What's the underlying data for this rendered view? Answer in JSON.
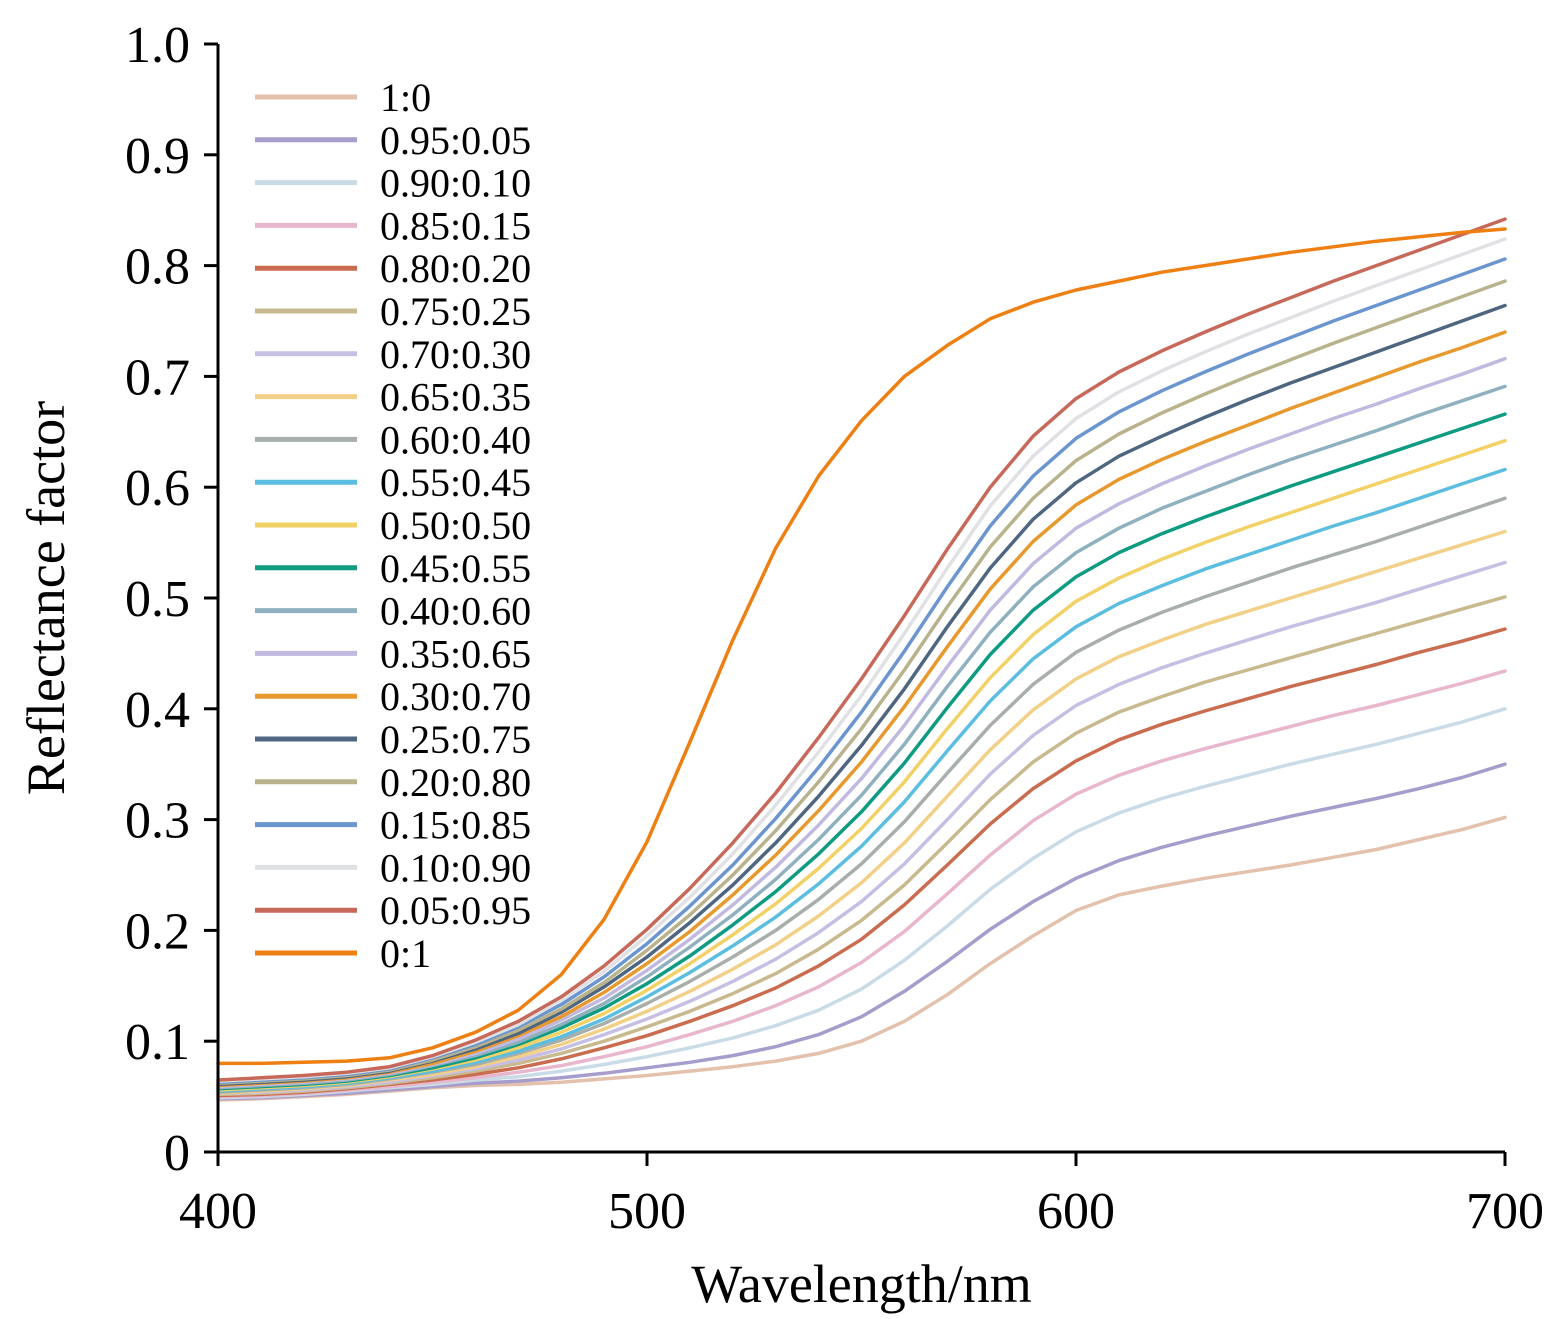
{
  "chart_data": {
    "type": "line",
    "title": "",
    "xlabel": "Wavelength/nm",
    "ylabel": "Reflectance factor",
    "xlim": [
      400,
      700
    ],
    "ylim": [
      0,
      1.0
    ],
    "x_ticks": [
      400,
      500,
      600,
      700
    ],
    "x_tick_labels": [
      "400",
      "500",
      "600",
      "700"
    ],
    "y_ticks": [
      0,
      0.1,
      0.2,
      0.3,
      0.4,
      0.5,
      0.6,
      0.7,
      0.8,
      0.9,
      1.0
    ],
    "y_tick_labels": [
      "0",
      "0.1",
      "0.2",
      "0.3",
      "0.4",
      "0.5",
      "0.6",
      "0.7",
      "0.8",
      "0.9",
      "1.0"
    ],
    "grid": false,
    "legend_position": "top-left",
    "x": [
      400,
      410,
      420,
      430,
      440,
      450,
      460,
      470,
      480,
      490,
      500,
      510,
      520,
      530,
      540,
      550,
      560,
      570,
      580,
      590,
      600,
      610,
      620,
      630,
      640,
      650,
      660,
      670,
      680,
      690,
      700
    ],
    "series": [
      {
        "name": "1:0",
        "color": "#e3c1ad",
        "values": [
          0.047,
          0.048,
          0.05,
          0.052,
          0.055,
          0.058,
          0.06,
          0.061,
          0.063,
          0.066,
          0.069,
          0.073,
          0.077,
          0.082,
          0.089,
          0.1,
          0.118,
          0.142,
          0.17,
          0.195,
          0.218,
          0.232,
          0.24,
          0.247,
          0.253,
          0.259,
          0.266,
          0.273,
          0.282,
          0.291,
          0.302
        ]
      },
      {
        "name": "0.95:0.05",
        "color": "#a79dcc",
        "values": [
          0.048,
          0.049,
          0.051,
          0.053,
          0.056,
          0.059,
          0.062,
          0.064,
          0.067,
          0.071,
          0.076,
          0.081,
          0.087,
          0.095,
          0.106,
          0.122,
          0.145,
          0.172,
          0.201,
          0.226,
          0.247,
          0.263,
          0.275,
          0.285,
          0.294,
          0.303,
          0.311,
          0.319,
          0.328,
          0.338,
          0.35
        ]
      },
      {
        "name": "0.90:0.10",
        "color": "#c9dbe7",
        "values": [
          0.049,
          0.05,
          0.052,
          0.055,
          0.058,
          0.061,
          0.065,
          0.068,
          0.073,
          0.079,
          0.086,
          0.094,
          0.103,
          0.114,
          0.128,
          0.147,
          0.173,
          0.204,
          0.237,
          0.265,
          0.289,
          0.306,
          0.319,
          0.33,
          0.34,
          0.35,
          0.359,
          0.368,
          0.378,
          0.388,
          0.4
        ]
      },
      {
        "name": "0.85:0.15",
        "color": "#e8b6cd",
        "values": [
          0.05,
          0.051,
          0.053,
          0.056,
          0.059,
          0.063,
          0.067,
          0.072,
          0.078,
          0.086,
          0.095,
          0.106,
          0.118,
          0.132,
          0.149,
          0.171,
          0.199,
          0.233,
          0.268,
          0.299,
          0.323,
          0.34,
          0.353,
          0.364,
          0.374,
          0.384,
          0.394,
          0.403,
          0.413,
          0.423,
          0.434
        ]
      },
      {
        "name": "0.80:0.20",
        "color": "#c96c4f",
        "values": [
          0.051,
          0.052,
          0.054,
          0.057,
          0.061,
          0.065,
          0.07,
          0.076,
          0.084,
          0.094,
          0.105,
          0.118,
          0.132,
          0.148,
          0.168,
          0.192,
          0.223,
          0.259,
          0.296,
          0.328,
          0.353,
          0.372,
          0.386,
          0.398,
          0.409,
          0.42,
          0.43,
          0.44,
          0.451,
          0.461,
          0.472
        ]
      },
      {
        "name": "0.75:0.25",
        "color": "#c9b98f",
        "values": [
          0.052,
          0.053,
          0.055,
          0.058,
          0.062,
          0.067,
          0.073,
          0.08,
          0.089,
          0.1,
          0.113,
          0.127,
          0.143,
          0.161,
          0.183,
          0.209,
          0.241,
          0.279,
          0.318,
          0.352,
          0.378,
          0.397,
          0.411,
          0.424,
          0.435,
          0.446,
          0.457,
          0.468,
          0.479,
          0.49,
          0.501
        ]
      },
      {
        "name": "0.70:0.30",
        "color": "#c7bfe3",
        "values": [
          0.053,
          0.054,
          0.056,
          0.059,
          0.063,
          0.069,
          0.075,
          0.083,
          0.093,
          0.106,
          0.12,
          0.136,
          0.154,
          0.174,
          0.198,
          0.226,
          0.26,
          0.3,
          0.341,
          0.376,
          0.403,
          0.422,
          0.437,
          0.45,
          0.462,
          0.474,
          0.485,
          0.496,
          0.508,
          0.52,
          0.532
        ]
      },
      {
        "name": "0.65:0.35",
        "color": "#f2d087",
        "values": [
          0.053,
          0.055,
          0.057,
          0.06,
          0.065,
          0.07,
          0.077,
          0.086,
          0.097,
          0.111,
          0.127,
          0.145,
          0.165,
          0.187,
          0.213,
          0.243,
          0.279,
          0.321,
          0.363,
          0.399,
          0.427,
          0.447,
          0.462,
          0.476,
          0.488,
          0.5,
          0.512,
          0.524,
          0.536,
          0.548,
          0.56
        ]
      },
      {
        "name": "0.60:0.40",
        "color": "#a8aeaa",
        "values": [
          0.054,
          0.056,
          0.058,
          0.061,
          0.066,
          0.072,
          0.079,
          0.089,
          0.101,
          0.116,
          0.134,
          0.154,
          0.176,
          0.2,
          0.228,
          0.26,
          0.298,
          0.342,
          0.385,
          0.422,
          0.451,
          0.471,
          0.487,
          0.501,
          0.514,
          0.527,
          0.539,
          0.551,
          0.564,
          0.577,
          0.59
        ]
      },
      {
        "name": "0.55:0.45",
        "color": "#5bbde0",
        "values": [
          0.055,
          0.057,
          0.059,
          0.062,
          0.067,
          0.073,
          0.081,
          0.091,
          0.104,
          0.12,
          0.14,
          0.162,
          0.186,
          0.212,
          0.242,
          0.276,
          0.316,
          0.362,
          0.407,
          0.445,
          0.474,
          0.495,
          0.511,
          0.526,
          0.539,
          0.552,
          0.565,
          0.577,
          0.59,
          0.603,
          0.616
        ]
      },
      {
        "name": "0.50:0.50",
        "color": "#f2d166",
        "values": [
          0.056,
          0.058,
          0.06,
          0.063,
          0.068,
          0.075,
          0.083,
          0.094,
          0.108,
          0.125,
          0.146,
          0.17,
          0.196,
          0.224,
          0.256,
          0.292,
          0.334,
          0.382,
          0.428,
          0.467,
          0.497,
          0.518,
          0.535,
          0.55,
          0.564,
          0.577,
          0.59,
          0.603,
          0.616,
          0.629,
          0.642
        ]
      },
      {
        "name": "0.45:0.55",
        "color": "#0e9b82",
        "values": [
          0.057,
          0.059,
          0.061,
          0.064,
          0.069,
          0.076,
          0.085,
          0.097,
          0.112,
          0.13,
          0.152,
          0.177,
          0.205,
          0.235,
          0.269,
          0.307,
          0.351,
          0.401,
          0.449,
          0.489,
          0.519,
          0.541,
          0.558,
          0.573,
          0.587,
          0.601,
          0.614,
          0.627,
          0.64,
          0.653,
          0.666
        ]
      },
      {
        "name": "0.40:0.60",
        "color": "#8fb0bf",
        "values": [
          0.058,
          0.06,
          0.062,
          0.065,
          0.07,
          0.078,
          0.087,
          0.099,
          0.115,
          0.134,
          0.158,
          0.185,
          0.214,
          0.246,
          0.282,
          0.322,
          0.368,
          0.42,
          0.469,
          0.51,
          0.541,
          0.563,
          0.581,
          0.596,
          0.611,
          0.625,
          0.638,
          0.651,
          0.665,
          0.678,
          0.691
        ]
      },
      {
        "name": "0.35:0.65",
        "color": "#c2b9e1",
        "values": [
          0.059,
          0.061,
          0.063,
          0.066,
          0.071,
          0.079,
          0.089,
          0.102,
          0.119,
          0.139,
          0.164,
          0.192,
          0.223,
          0.257,
          0.295,
          0.337,
          0.385,
          0.438,
          0.489,
          0.531,
          0.563,
          0.585,
          0.603,
          0.619,
          0.634,
          0.648,
          0.662,
          0.675,
          0.689,
          0.702,
          0.716
        ]
      },
      {
        "name": "0.30:0.70",
        "color": "#e8992e",
        "values": [
          0.06,
          0.062,
          0.064,
          0.067,
          0.072,
          0.08,
          0.091,
          0.105,
          0.122,
          0.144,
          0.17,
          0.199,
          0.232,
          0.268,
          0.308,
          0.352,
          0.402,
          0.456,
          0.508,
          0.551,
          0.584,
          0.607,
          0.625,
          0.641,
          0.656,
          0.671,
          0.685,
          0.699,
          0.713,
          0.726,
          0.74
        ]
      },
      {
        "name": "0.25:0.75",
        "color": "#4e6680",
        "values": [
          0.061,
          0.063,
          0.065,
          0.068,
          0.073,
          0.082,
          0.093,
          0.107,
          0.126,
          0.149,
          0.176,
          0.207,
          0.241,
          0.279,
          0.321,
          0.367,
          0.418,
          0.474,
          0.527,
          0.571,
          0.604,
          0.628,
          0.646,
          0.663,
          0.679,
          0.694,
          0.708,
          0.722,
          0.736,
          0.75,
          0.764
        ]
      },
      {
        "name": "0.20:0.80",
        "color": "#b8b38c",
        "values": [
          0.062,
          0.064,
          0.066,
          0.069,
          0.074,
          0.083,
          0.095,
          0.11,
          0.129,
          0.153,
          0.182,
          0.214,
          0.25,
          0.29,
          0.334,
          0.382,
          0.435,
          0.492,
          0.546,
          0.59,
          0.624,
          0.648,
          0.667,
          0.684,
          0.7,
          0.715,
          0.73,
          0.744,
          0.758,
          0.772,
          0.786
        ]
      },
      {
        "name": "0.15:0.85",
        "color": "#6b95cf",
        "values": [
          0.063,
          0.065,
          0.067,
          0.07,
          0.075,
          0.085,
          0.097,
          0.113,
          0.133,
          0.158,
          0.188,
          0.222,
          0.259,
          0.301,
          0.347,
          0.397,
          0.452,
          0.51,
          0.565,
          0.61,
          0.644,
          0.668,
          0.687,
          0.704,
          0.72,
          0.735,
          0.75,
          0.764,
          0.778,
          0.792,
          0.806
        ]
      },
      {
        "name": "0.10:0.90",
        "color": "#dfe1e4",
        "values": [
          0.064,
          0.066,
          0.068,
          0.071,
          0.076,
          0.086,
          0.099,
          0.115,
          0.137,
          0.163,
          0.195,
          0.23,
          0.269,
          0.313,
          0.361,
          0.412,
          0.468,
          0.527,
          0.583,
          0.628,
          0.662,
          0.686,
          0.705,
          0.722,
          0.738,
          0.753,
          0.768,
          0.782,
          0.796,
          0.81,
          0.824
        ]
      },
      {
        "name": "0.05:0.95",
        "color": "#c7695a",
        "values": [
          0.065,
          0.067,
          0.069,
          0.072,
          0.077,
          0.087,
          0.101,
          0.118,
          0.14,
          0.168,
          0.201,
          0.238,
          0.279,
          0.324,
          0.374,
          0.427,
          0.484,
          0.544,
          0.6,
          0.646,
          0.68,
          0.704,
          0.723,
          0.74,
          0.756,
          0.771,
          0.786,
          0.8,
          0.814,
          0.828,
          0.842
        ]
      },
      {
        "name": "0:1",
        "color": "#ee7f12",
        "values": [
          0.08,
          0.08,
          0.081,
          0.082,
          0.085,
          0.094,
          0.108,
          0.128,
          0.16,
          0.21,
          0.28,
          0.37,
          0.462,
          0.545,
          0.61,
          0.66,
          0.7,
          0.728,
          0.752,
          0.767,
          0.778,
          0.786,
          0.794,
          0.8,
          0.806,
          0.812,
          0.817,
          0.822,
          0.826,
          0.83,
          0.833
        ]
      }
    ]
  }
}
